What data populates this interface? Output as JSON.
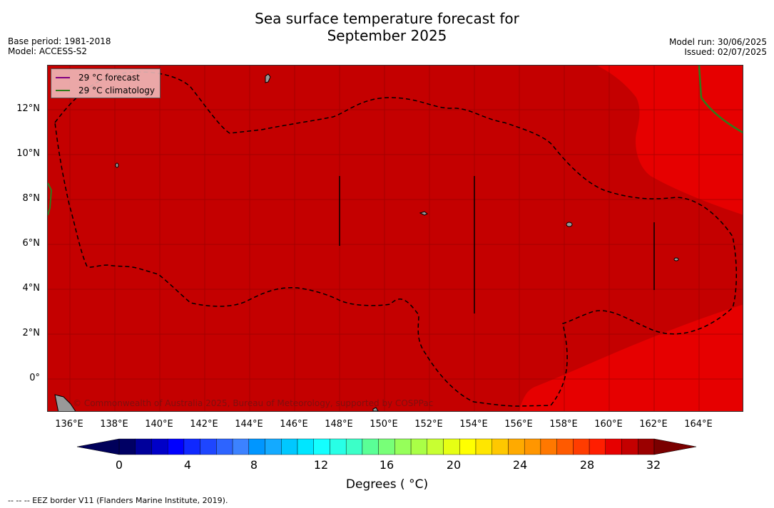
{
  "header": {
    "title_line1": "Sea surface temperature forecast for",
    "title_line2": "September 2025",
    "base_period": "Base period: 1981-2018",
    "model": "Model: ACCESS-S2",
    "model_run": "Model run: 30/06/2025",
    "issued": "Issued: 02/07/2025"
  },
  "legend": {
    "forecast_label": "29 °C  forecast",
    "climatology_label": "29 °C  climatology",
    "forecast_color": "#800080",
    "climatology_color": "#2e7d1a"
  },
  "map": {
    "lat_labels": [
      "12°N",
      "10°N",
      "8°N",
      "6°N",
      "4°N",
      "2°N",
      "0°"
    ],
    "lon_labels": [
      "136°E",
      "138°E",
      "140°E",
      "142°E",
      "144°E",
      "146°E",
      "148°E",
      "150°E",
      "152°E",
      "154°E",
      "156°E",
      "158°E",
      "160°E",
      "162°E",
      "164°E"
    ],
    "copyright": "© Commonwealth of Australia 2025, Bureau of Meteorology, supported by COSPPac",
    "colors": {
      "warm": "#c40000",
      "warmer": "#e60000",
      "land": "#999999"
    }
  },
  "colorbar": {
    "ticks": [
      "0",
      "4",
      "8",
      "12",
      "16",
      "20",
      "24",
      "28",
      "32"
    ],
    "title": "Degrees ( °C)",
    "colors": [
      "#000064",
      "#00009b",
      "#0000c8",
      "#0000ff",
      "#0f28ff",
      "#1e46ff",
      "#2d64ff",
      "#3c82ff",
      "#0096ff",
      "#14aaff",
      "#00c8ff",
      "#00e6ff",
      "#14ffff",
      "#28ffe6",
      "#3cffc8",
      "#5aff96",
      "#78ff78",
      "#96ff5a",
      "#aaff46",
      "#c8ff32",
      "#e6ff14",
      "#ffff00",
      "#ffe600",
      "#ffc800",
      "#ffaa00",
      "#ff9600",
      "#ff7800",
      "#ff5a00",
      "#ff3c00",
      "#ff1e00",
      "#e60000",
      "#c40000",
      "#9b0000"
    ],
    "under_color": "#00005a",
    "over_color": "#7a0000"
  },
  "footer": {
    "eez_note": "--  --  -- EEZ border V11 (Flanders Marine Institute, 2019)."
  }
}
